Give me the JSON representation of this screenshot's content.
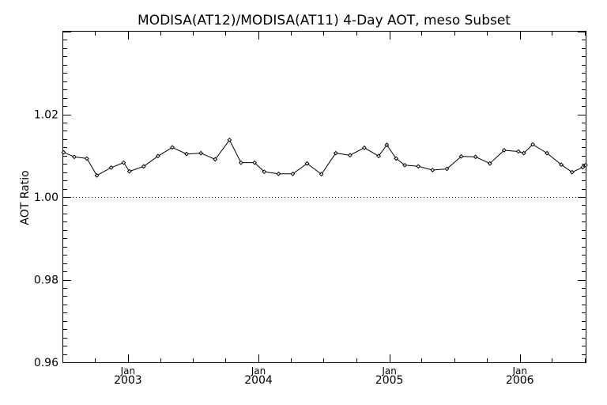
{
  "chart_data": {
    "type": "line",
    "title": "MODISA(AT12)/MODISA(AT11) 4-Day AOT, meso Subset",
    "xlabel": "",
    "ylabel": "AOT Ratio",
    "ylim": [
      0.96,
      1.04
    ],
    "yticks": [
      0.96,
      0.98,
      1.0,
      1.02
    ],
    "ytick_labels": [
      "0.96",
      "0.98",
      "1.00",
      "1.02"
    ],
    "xlim": [
      "2002-07-04",
      "2006-07-04"
    ],
    "xticks": [
      {
        "month": "Jan",
        "year": "2003",
        "date": "2003-01-01"
      },
      {
        "month": "Jan",
        "year": "2004",
        "date": "2004-01-01"
      },
      {
        "month": "Jan",
        "year": "2005",
        "date": "2005-01-01"
      },
      {
        "month": "Jan",
        "year": "2006",
        "date": "2006-01-01"
      }
    ],
    "reference_line": 1.0,
    "grid": false,
    "series": [
      {
        "x": [
          "2002-07-05",
          "2002-08-04",
          "2002-09-08",
          "2002-10-06",
          "2002-11-15",
          "2002-12-20",
          "2003-01-05",
          "2003-02-14",
          "2003-03-26",
          "2003-05-05",
          "2003-06-14",
          "2003-07-24",
          "2003-09-02",
          "2003-10-12",
          "2003-11-13",
          "2003-12-21",
          "2004-01-17",
          "2004-02-26",
          "2004-04-06",
          "2004-05-16",
          "2004-06-25",
          "2004-08-04",
          "2004-09-13",
          "2004-10-23",
          "2004-12-02",
          "2004-12-25",
          "2005-01-20",
          "2005-02-13",
          "2005-03-23",
          "2005-05-02",
          "2005-06-11",
          "2005-07-21",
          "2005-08-30",
          "2005-10-09",
          "2005-11-18",
          "2005-12-28",
          "2006-01-12",
          "2006-02-06",
          "2006-03-18",
          "2006-04-27",
          "2006-05-27",
          "2006-06-26",
          "2006-07-04"
        ],
        "values": [
          1.0108,
          1.0097,
          1.0093,
          1.0052,
          1.0071,
          1.0083,
          1.0062,
          1.0074,
          1.0099,
          1.012,
          1.0104,
          1.0106,
          1.0091,
          1.0138,
          1.0083,
          1.0083,
          1.0061,
          1.0056,
          1.0056,
          1.0081,
          1.0055,
          1.0106,
          1.0101,
          1.0119,
          1.0099,
          1.0126,
          1.0093,
          1.0077,
          1.0074,
          1.0065,
          1.0068,
          1.0098,
          1.0097,
          1.0081,
          1.0113,
          1.011,
          1.0106,
          1.0127,
          1.0106,
          1.0078,
          1.006,
          1.0072,
          1.0077
        ]
      }
    ]
  }
}
